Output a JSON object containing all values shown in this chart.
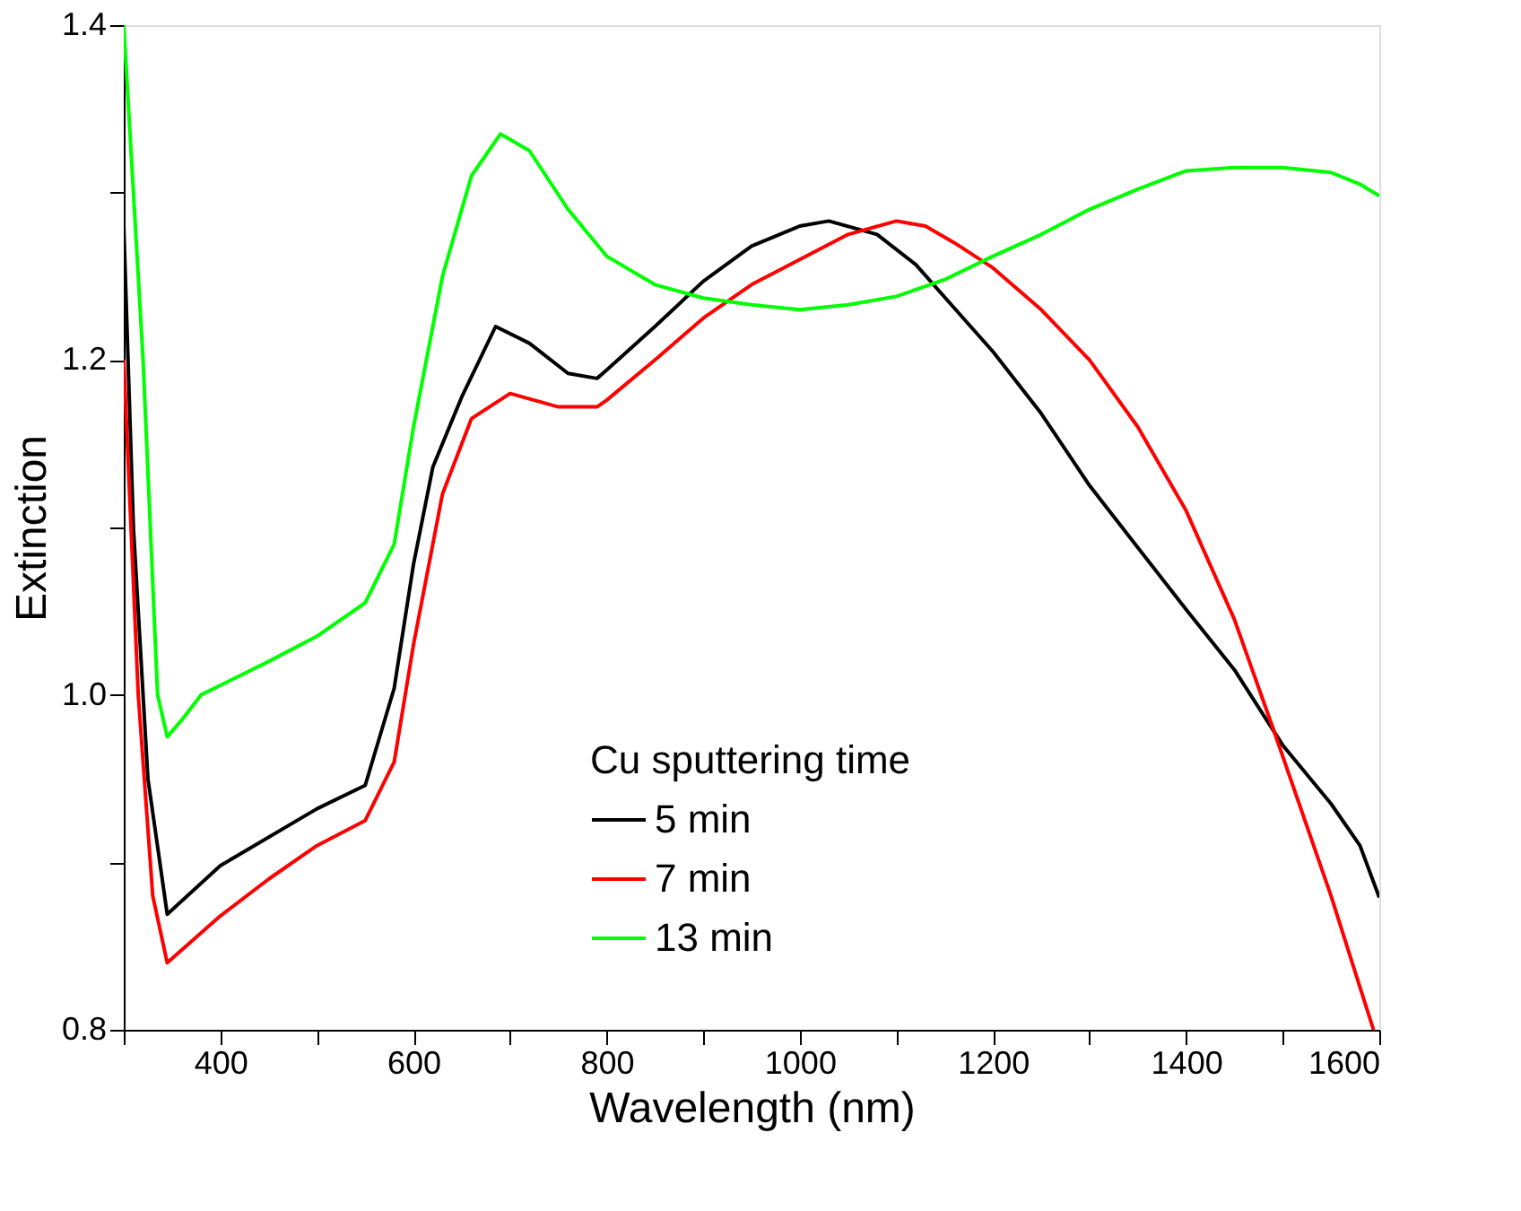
{
  "chart_data": {
    "type": "line",
    "xlabel": "Wavelength (nm)",
    "ylabel": "Extinction",
    "legend_title": "Cu sputtering time",
    "legend": "bottom",
    "grid": false,
    "line_style": "solid",
    "xlim": [
      300,
      1600
    ],
    "ylim": [
      0.8,
      1.4
    ],
    "xticks": [
      {
        "value": 300,
        "label": null
      },
      400,
      {
        "value": 500,
        "label": null
      },
      600,
      {
        "value": 700,
        "label": null
      },
      800,
      {
        "value": 900,
        "label": null
      },
      1000,
      {
        "value": 1100,
        "label": null
      },
      1200,
      {
        "value": 1300,
        "label": null
      },
      1400,
      {
        "value": 1500,
        "label": null
      },
      1600
    ],
    "yticks": [
      0.8,
      {
        "value": 0.9,
        "label": null
      },
      {
        "value": 1.0,
        "label": "1.0"
      },
      {
        "value": 1.1,
        "label": null
      },
      1.2,
      {
        "value": 1.3,
        "label": null
      },
      1.4
    ],
    "series": [
      {
        "name": "5 min",
        "color": "#000000",
        "x": [
          300,
          310,
          325,
          345,
          400,
          500,
          550,
          580,
          600,
          620,
          650,
          685,
          720,
          760,
          790,
          800,
          850,
          900,
          950,
          1000,
          1030,
          1080,
          1120,
          1160,
          1200,
          1250,
          1300,
          1350,
          1400,
          1450,
          1500,
          1550,
          1580,
          1600
        ],
        "values": [
          1.28,
          1.1,
          0.95,
          0.869,
          0.898,
          0.932,
          0.946,
          1.004,
          1.078,
          1.136,
          1.178,
          1.22,
          1.21,
          1.192,
          1.189,
          1.194,
          1.22,
          1.247,
          1.268,
          1.28,
          1.283,
          1.275,
          1.257,
          1.231,
          1.205,
          1.168,
          1.125,
          1.088,
          1.051,
          1.015,
          0.97,
          0.935,
          0.91,
          0.879
        ]
      },
      {
        "name": "7 min",
        "color": "#ff0000",
        "x": [
          300,
          315,
          330,
          345,
          400,
          450,
          500,
          550,
          580,
          600,
          630,
          660,
          700,
          750,
          790,
          800,
          850,
          900,
          950,
          1000,
          1050,
          1100,
          1130,
          1160,
          1200,
          1250,
          1300,
          1350,
          1400,
          1450,
          1490,
          1550,
          1594
        ],
        "values": [
          1.2,
          1.0,
          0.88,
          0.84,
          0.868,
          0.89,
          0.91,
          0.925,
          0.96,
          1.03,
          1.12,
          1.165,
          1.18,
          1.172,
          1.172,
          1.176,
          1.2,
          1.225,
          1.245,
          1.26,
          1.275,
          1.283,
          1.28,
          1.27,
          1.255,
          1.23,
          1.2,
          1.16,
          1.11,
          1.045,
          0.98,
          0.88,
          0.8
        ]
      },
      {
        "name": "13 min",
        "color": "#00ff00",
        "x": [
          300,
          320,
          335,
          345,
          360,
          380,
          450,
          500,
          550,
          580,
          600,
          630,
          660,
          690,
          720,
          760,
          800,
          850,
          900,
          950,
          1000,
          1050,
          1100,
          1150,
          1200,
          1250,
          1300,
          1350,
          1400,
          1450,
          1500,
          1550,
          1580,
          1600
        ],
        "values": [
          1.4,
          1.2,
          1.0,
          0.975,
          0.985,
          1.0,
          1.02,
          1.035,
          1.055,
          1.09,
          1.16,
          1.25,
          1.31,
          1.335,
          1.325,
          1.29,
          1.262,
          1.245,
          1.237,
          1.233,
          1.23,
          1.233,
          1.238,
          1.248,
          1.262,
          1.275,
          1.29,
          1.302,
          1.313,
          1.315,
          1.315,
          1.312,
          1.305,
          1.298
        ]
      }
    ]
  }
}
